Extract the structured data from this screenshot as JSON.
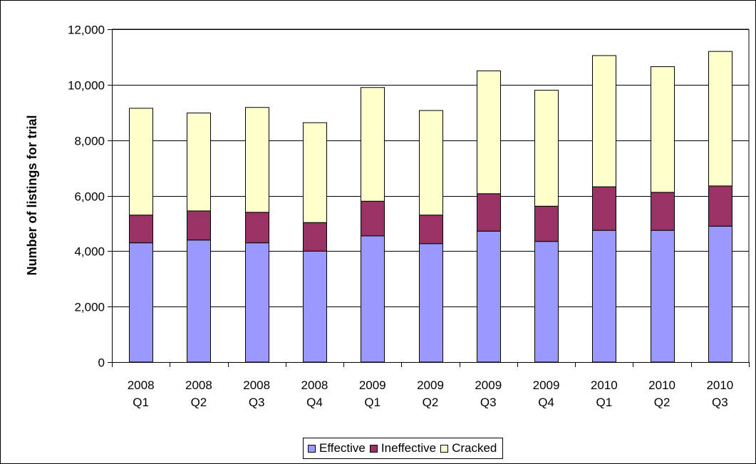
{
  "chart_data": {
    "type": "bar",
    "stacked": true,
    "title": "",
    "xlabel": "",
    "ylabel": "Number of listings for trial",
    "ylim": [
      0,
      12000
    ],
    "yticks": [
      "0",
      "2,000",
      "4,000",
      "6,000",
      "8,000",
      "10,000",
      "12,000"
    ],
    "categories": [
      [
        "2008",
        "Q1"
      ],
      [
        "2008",
        "Q2"
      ],
      [
        "2008",
        "Q3"
      ],
      [
        "2008",
        "Q4"
      ],
      [
        "2009",
        "Q1"
      ],
      [
        "2009",
        "Q2"
      ],
      [
        "2009",
        "Q3"
      ],
      [
        "2009",
        "Q4"
      ],
      [
        "2010",
        "Q1"
      ],
      [
        "2010",
        "Q2"
      ],
      [
        "2010",
        "Q3"
      ]
    ],
    "series": [
      {
        "name": "Effective",
        "color": "#9999ff",
        "values": [
          4300,
          4400,
          4300,
          4000,
          4550,
          4270,
          4720,
          4350,
          4750,
          4750,
          4900
        ]
      },
      {
        "name": "Ineffective",
        "color": "#993366",
        "values": [
          1000,
          1050,
          1100,
          1030,
          1250,
          1030,
          1350,
          1270,
          1570,
          1370,
          1450
        ]
      },
      {
        "name": "Cracked",
        "color": "#ffffcc",
        "values": [
          3850,
          3530,
          3780,
          3600,
          4100,
          3770,
          4430,
          4180,
          4730,
          4530,
          4850
        ]
      }
    ],
    "grid": true,
    "legend_position": "bottom"
  }
}
